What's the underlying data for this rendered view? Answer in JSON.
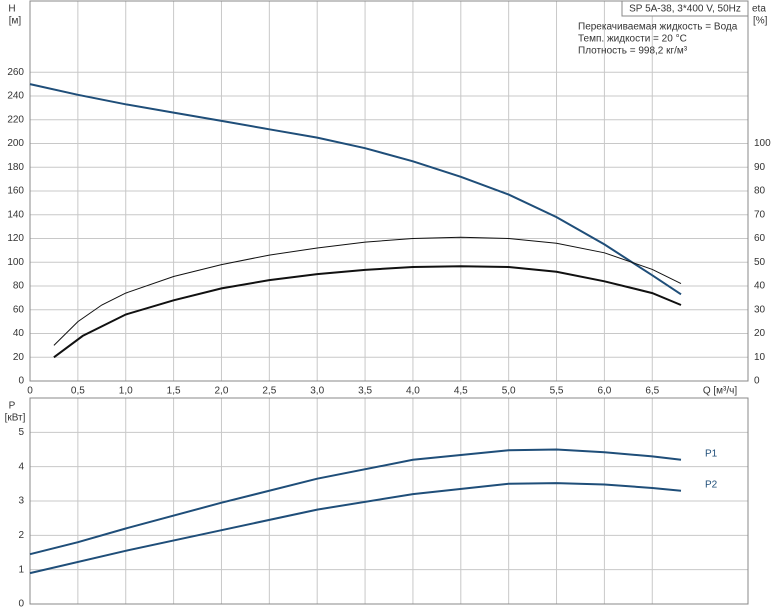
{
  "chart_data": [
    {
      "type": "line",
      "title": "SP 5A-38, 3*400 V, 50Hz",
      "annotations": [
        "Перекачиваемая жидкость = Вода",
        "Темп. жидкости = 20 °C",
        "Плотность = 998,2 кг/м³"
      ],
      "y_label": "H",
      "y_unit": "[м]",
      "y2_label": "eta",
      "y2_unit": "[%]",
      "x_label": "Q [м³/ч]",
      "xlim": [
        0,
        7.5
      ],
      "xticks": [
        0,
        {
          "value": 0.5,
          "label": "0,5"
        },
        {
          "value": 1.0,
          "label": "1,0"
        },
        {
          "value": 1.5,
          "label": "1,5"
        },
        {
          "value": 2.0,
          "label": "2,0"
        },
        {
          "value": 2.5,
          "label": "2,5"
        },
        {
          "value": 3.0,
          "label": "3,0"
        },
        {
          "value": 3.5,
          "label": "3,5"
        },
        {
          "value": 4.0,
          "label": "4,0"
        },
        {
          "value": 4.5,
          "label": "4,5"
        },
        {
          "value": 5.0,
          "label": "5,0"
        },
        {
          "value": 5.5,
          "label": "5,5"
        },
        {
          "value": 6.0,
          "label": "6,0"
        },
        {
          "value": 6.5,
          "label": "6,5"
        }
      ],
      "ylim": [
        0,
        320
      ],
      "yticks": [
        0,
        20,
        40,
        60,
        80,
        100,
        120,
        140,
        160,
        180,
        200,
        220,
        240,
        260
      ],
      "y2lim": [
        0,
        160
      ],
      "y2ticks": [
        0,
        10,
        20,
        30,
        40,
        50,
        60,
        70,
        80,
        90,
        100
      ],
      "grid": true,
      "series": [
        {
          "color": "#1f4e79",
          "x": [
            0,
            0.5,
            1,
            1.5,
            2,
            2.5,
            3,
            3.5,
            4,
            4.5,
            5,
            5.5,
            6,
            6.5,
            6.8
          ],
          "values": [
            250,
            241,
            233,
            226,
            219,
            212,
            205,
            196,
            185,
            172,
            157,
            138,
            115,
            89,
            73
          ]
        },
        {
          "color": "#111111",
          "axis": "y2",
          "x": [
            0.25,
            0.5,
            0.75,
            1,
            1.5,
            2,
            2.5,
            3,
            3.5,
            4,
            4.5,
            5,
            5.5,
            6,
            6.5,
            6.8
          ],
          "values": [
            15,
            25,
            32,
            37,
            44,
            49,
            53,
            56,
            58.5,
            60,
            60.5,
            60,
            58,
            54,
            47,
            41
          ]
        },
        {
          "color": "#111111",
          "axis": "y2",
          "x": [
            0.25,
            0.55,
            1,
            1.5,
            2,
            2.5,
            3,
            3.5,
            4,
            4.5,
            5,
            5.5,
            6,
            6.5,
            6.8
          ],
          "values": [
            10,
            19,
            28,
            34,
            39,
            42.5,
            45,
            46.8,
            48,
            48.3,
            48,
            46,
            42,
            37,
            32
          ]
        }
      ]
    },
    {
      "type": "line",
      "y_label": "P",
      "y_unit": "[кВт]",
      "xlim": [
        0,
        7.5
      ],
      "ylim": [
        0,
        6
      ],
      "yticks": [
        0,
        1,
        2,
        3,
        4,
        5
      ],
      "grid": true,
      "series": [
        {
          "name": "P1",
          "color": "#1f4e79",
          "x": [
            0,
            0.5,
            1,
            2,
            3,
            4,
            5,
            5.5,
            6,
            6.5,
            6.8
          ],
          "values": [
            1.45,
            1.8,
            2.2,
            2.95,
            3.65,
            4.2,
            4.48,
            4.5,
            4.42,
            4.3,
            4.2
          ]
        },
        {
          "name": "P2",
          "color": "#1f4e79",
          "x": [
            0,
            1,
            2,
            3,
            4,
            5,
            5.5,
            6,
            6.5,
            6.8
          ],
          "values": [
            0.9,
            1.55,
            2.15,
            2.75,
            3.2,
            3.5,
            3.52,
            3.48,
            3.38,
            3.3
          ]
        }
      ]
    }
  ]
}
